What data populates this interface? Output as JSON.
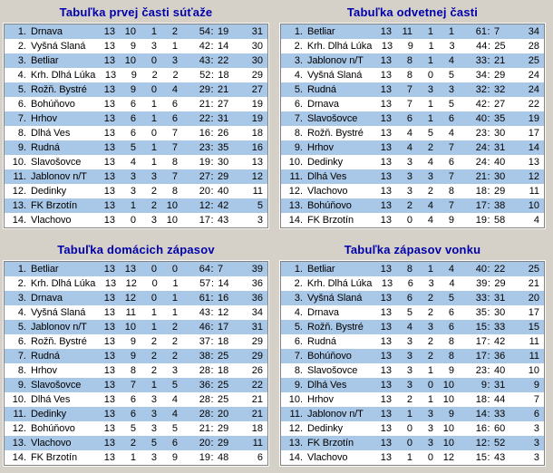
{
  "score_separator": ":",
  "colors": {
    "page_background": "#d5d1c9",
    "row_stripe_blue": "#a9c7e7",
    "row_plain_white": "#ffffff",
    "title_text": "#0000ac",
    "cell_text": "#000000",
    "table_border_dark": "#828282",
    "table_border_light": "#fbfbf9"
  },
  "tables": [
    {
      "title": "Tabuľka prvej časti súťaže",
      "rows": [
        [
          "1.",
          "Drnava",
          "13",
          "10",
          "1",
          "2",
          "54",
          "19",
          "31"
        ],
        [
          "2.",
          "Vyšná Slaná",
          "13",
          "9",
          "3",
          "1",
          "42",
          "14",
          "30"
        ],
        [
          "3.",
          "Betliar",
          "13",
          "10",
          "0",
          "3",
          "43",
          "22",
          "30"
        ],
        [
          "4.",
          "Krh. Dlhá Lúka",
          "13",
          "9",
          "2",
          "2",
          "52",
          "18",
          "29"
        ],
        [
          "5.",
          "Rožň. Bystré",
          "13",
          "9",
          "0",
          "4",
          "29",
          "21",
          "27"
        ],
        [
          "6.",
          "Bohúňovo",
          "13",
          "6",
          "1",
          "6",
          "21",
          "27",
          "19"
        ],
        [
          "7.",
          "Hrhov",
          "13",
          "6",
          "1",
          "6",
          "22",
          "31",
          "19"
        ],
        [
          "8.",
          "Dlhá Ves",
          "13",
          "6",
          "0",
          "7",
          "16",
          "26",
          "18"
        ],
        [
          "9.",
          "Rudná",
          "13",
          "5",
          "1",
          "7",
          "23",
          "35",
          "16"
        ],
        [
          "10.",
          "Slavošovce",
          "13",
          "4",
          "1",
          "8",
          "19",
          "30",
          "13"
        ],
        [
          "11.",
          "Jablonov n/T",
          "13",
          "3",
          "3",
          "7",
          "27",
          "29",
          "12"
        ],
        [
          "12.",
          "Dedinky",
          "13",
          "3",
          "2",
          "8",
          "20",
          "40",
          "11"
        ],
        [
          "13.",
          "FK Brzotín",
          "13",
          "1",
          "2",
          "10",
          "12",
          "42",
          "5"
        ],
        [
          "14.",
          "Vlachovo",
          "13",
          "0",
          "3",
          "10",
          "17",
          "43",
          "3"
        ]
      ]
    },
    {
      "title": "Tabuľka odvetnej časti",
      "rows": [
        [
          "1.",
          "Betliar",
          "13",
          "11",
          "1",
          "1",
          "61",
          "7",
          "34"
        ],
        [
          "2.",
          "Krh. Dlhá Lúka",
          "13",
          "9",
          "1",
          "3",
          "44",
          "25",
          "28"
        ],
        [
          "3.",
          "Jablonov n/T",
          "13",
          "8",
          "1",
          "4",
          "33",
          "21",
          "25"
        ],
        [
          "4.",
          "Vyšná Slaná",
          "13",
          "8",
          "0",
          "5",
          "34",
          "29",
          "24"
        ],
        [
          "5.",
          "Rudná",
          "13",
          "7",
          "3",
          "3",
          "32",
          "32",
          "24"
        ],
        [
          "6.",
          "Drnava",
          "13",
          "7",
          "1",
          "5",
          "42",
          "27",
          "22"
        ],
        [
          "7.",
          "Slavošovce",
          "13",
          "6",
          "1",
          "6",
          "40",
          "35",
          "19"
        ],
        [
          "8.",
          "Rožň. Bystré",
          "13",
          "4",
          "5",
          "4",
          "23",
          "30",
          "17"
        ],
        [
          "9.",
          "Hrhov",
          "13",
          "4",
          "2",
          "7",
          "24",
          "31",
          "14"
        ],
        [
          "10.",
          "Dedinky",
          "13",
          "3",
          "4",
          "6",
          "24",
          "40",
          "13"
        ],
        [
          "11.",
          "Dlhá Ves",
          "13",
          "3",
          "3",
          "7",
          "21",
          "30",
          "12"
        ],
        [
          "12.",
          "Vlachovo",
          "13",
          "3",
          "2",
          "8",
          "18",
          "29",
          "11"
        ],
        [
          "13.",
          "Bohúňovo",
          "13",
          "2",
          "4",
          "7",
          "17",
          "38",
          "10"
        ],
        [
          "14.",
          "FK Brzotín",
          "13",
          "0",
          "4",
          "9",
          "19",
          "58",
          "4"
        ]
      ]
    },
    {
      "title": "Tabuľka domácich zápasov",
      "rows": [
        [
          "1.",
          "Betliar",
          "13",
          "13",
          "0",
          "0",
          "64",
          "7",
          "39"
        ],
        [
          "2.",
          "Krh. Dlhá Lúka",
          "13",
          "12",
          "0",
          "1",
          "57",
          "14",
          "36"
        ],
        [
          "3.",
          "Drnava",
          "13",
          "12",
          "0",
          "1",
          "61",
          "16",
          "36"
        ],
        [
          "4.",
          "Vyšná Slaná",
          "13",
          "11",
          "1",
          "1",
          "43",
          "12",
          "34"
        ],
        [
          "5.",
          "Jablonov n/T",
          "13",
          "10",
          "1",
          "2",
          "46",
          "17",
          "31"
        ],
        [
          "6.",
          "Rožň. Bystré",
          "13",
          "9",
          "2",
          "2",
          "37",
          "18",
          "29"
        ],
        [
          "7.",
          "Rudná",
          "13",
          "9",
          "2",
          "2",
          "38",
          "25",
          "29"
        ],
        [
          "8.",
          "Hrhov",
          "13",
          "8",
          "2",
          "3",
          "28",
          "18",
          "26"
        ],
        [
          "9.",
          "Slavošovce",
          "13",
          "7",
          "1",
          "5",
          "36",
          "25",
          "22"
        ],
        [
          "10.",
          "Dlhá Ves",
          "13",
          "6",
          "3",
          "4",
          "28",
          "25",
          "21"
        ],
        [
          "11.",
          "Dedinky",
          "13",
          "6",
          "3",
          "4",
          "28",
          "20",
          "21"
        ],
        [
          "12.",
          "Bohúňovo",
          "13",
          "5",
          "3",
          "5",
          "21",
          "29",
          "18"
        ],
        [
          "13.",
          "Vlachovo",
          "13",
          "2",
          "5",
          "6",
          "20",
          "29",
          "11"
        ],
        [
          "14.",
          "FK Brzotín",
          "13",
          "1",
          "3",
          "9",
          "19",
          "48",
          "6"
        ]
      ]
    },
    {
      "title": "Tabuľka zápasov vonku",
      "rows": [
        [
          "1.",
          "Betliar",
          "13",
          "8",
          "1",
          "4",
          "40",
          "22",
          "25"
        ],
        [
          "2.",
          "Krh. Dlhá Lúka",
          "13",
          "6",
          "3",
          "4",
          "39",
          "29",
          "21"
        ],
        [
          "3.",
          "Vyšná Slaná",
          "13",
          "6",
          "2",
          "5",
          "33",
          "31",
          "20"
        ],
        [
          "4.",
          "Drnava",
          "13",
          "5",
          "2",
          "6",
          "35",
          "30",
          "17"
        ],
        [
          "5.",
          "Rožň. Bystré",
          "13",
          "4",
          "3",
          "6",
          "15",
          "33",
          "15"
        ],
        [
          "6.",
          "Rudná",
          "13",
          "3",
          "2",
          "8",
          "17",
          "42",
          "11"
        ],
        [
          "7.",
          "Bohúňovo",
          "13",
          "3",
          "2",
          "8",
          "17",
          "36",
          "11"
        ],
        [
          "8.",
          "Slavošovce",
          "13",
          "3",
          "1",
          "9",
          "23",
          "40",
          "10"
        ],
        [
          "9.",
          "Dlhá Ves",
          "13",
          "3",
          "0",
          "10",
          "9",
          "31",
          "9"
        ],
        [
          "10.",
          "Hrhov",
          "13",
          "2",
          "1",
          "10",
          "18",
          "44",
          "7"
        ],
        [
          "11.",
          "Jablonov n/T",
          "13",
          "1",
          "3",
          "9",
          "14",
          "33",
          "6"
        ],
        [
          "12.",
          "Dedinky",
          "13",
          "0",
          "3",
          "10",
          "16",
          "60",
          "3"
        ],
        [
          "13.",
          "FK Brzotín",
          "13",
          "0",
          "3",
          "10",
          "12",
          "52",
          "3"
        ],
        [
          "14.",
          "Vlachovo",
          "13",
          "1",
          "0",
          "12",
          "15",
          "43",
          "3"
        ]
      ]
    }
  ]
}
